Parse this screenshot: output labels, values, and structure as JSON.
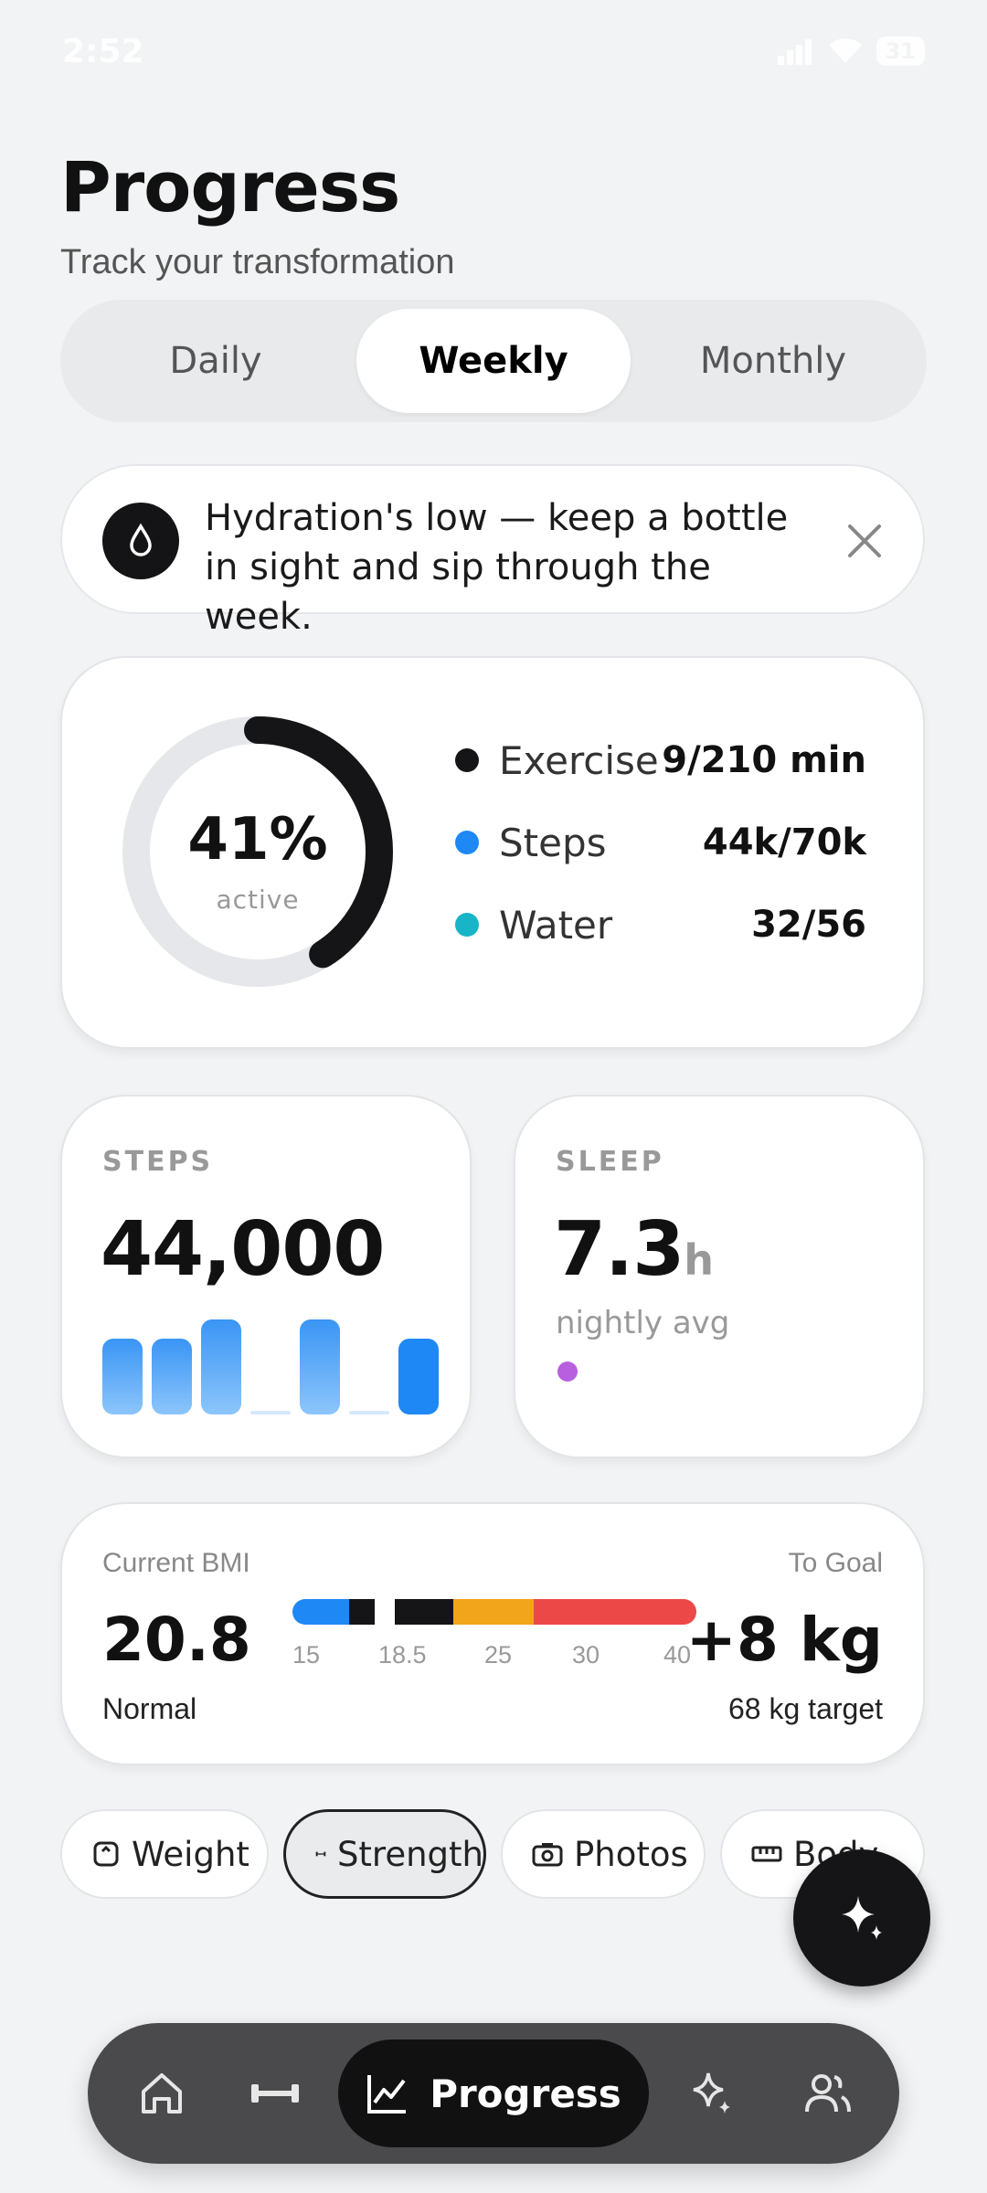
{
  "status_bar": {
    "time": "2:52",
    "battery": "31"
  },
  "header": {
    "title": "Progress",
    "subtitle": "Track your transformation"
  },
  "period_tabs": [
    {
      "label": "Daily",
      "active": false
    },
    {
      "label": "Weekly",
      "active": true
    },
    {
      "label": "Monthly",
      "active": false
    }
  ],
  "banner": {
    "icon": "water-drop-icon",
    "text": "Hydration's low — keep a bottle in sight and sip through the week."
  },
  "activity": {
    "percent_label": "41%",
    "percent_value": 0.41,
    "caption": "active",
    "legend": [
      {
        "name": "Exercise",
        "value": "9/210 min",
        "color": "#151517"
      },
      {
        "name": "Steps",
        "value": "44k/70k",
        "color": "#1e88f5"
      },
      {
        "name": "Water",
        "value": "32/56",
        "color": "#17b5c7"
      }
    ]
  },
  "steps_card": {
    "label": "STEPS",
    "value": "44,000",
    "daily_relative": [
      0.8,
      0.8,
      1.0,
      0.0,
      1.0,
      0.0,
      0.8
    ]
  },
  "sleep_card": {
    "label": "SLEEP",
    "value": "7.3",
    "unit": "h",
    "caption": "nightly avg"
  },
  "bmi": {
    "label": "Current BMI",
    "value": "20.8",
    "category": "Normal",
    "goal_label": "To Goal",
    "goal_value": "+8 kg",
    "goal_sub": "68 kg target",
    "scale_ticks": [
      "15",
      "18.5",
      "25",
      "30",
      "40"
    ]
  },
  "chips": [
    {
      "label": "Weight",
      "icon": "scale-icon",
      "active": false
    },
    {
      "label": "Strength",
      "icon": "dumbbell-icon",
      "active": true
    },
    {
      "label": "Photos",
      "icon": "camera-icon",
      "active": false
    },
    {
      "label": "Body",
      "icon": "ruler-icon",
      "active": false
    }
  ],
  "nav": {
    "items": [
      "home-icon",
      "dumbbell-icon",
      "chart-icon",
      "sparkle-icon",
      "users-icon"
    ],
    "active_label": "Progress"
  },
  "colors": {
    "accent": "#151517",
    "steps_blue": "#1e88f5",
    "water_teal": "#17b5c7",
    "sleep_purple": "#b85fe0"
  }
}
